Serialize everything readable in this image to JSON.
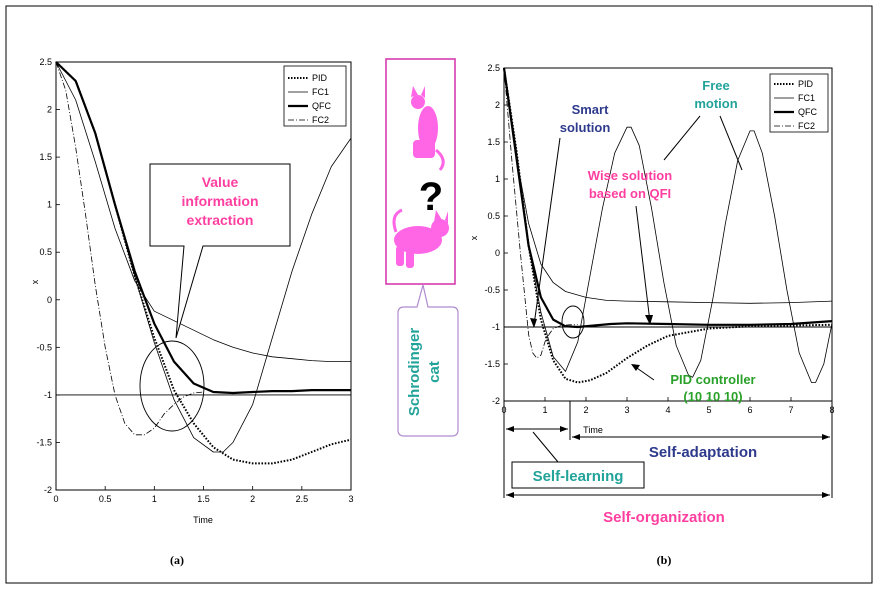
{
  "figure": {
    "caption_a": "(a)",
    "caption_b": "(b)",
    "cat_label_1": "Schrodinger",
    "cat_label_2": "cat",
    "question_mark": "?"
  },
  "colors": {
    "pink": "#ff3fa0",
    "teal": "#22a39a",
    "navy": "#2e3a8c",
    "green": "#2aa12a",
    "cat_fill": "#ff66e6",
    "cat_border": "#d63cae",
    "cat_bubble_border": "#b08ad0"
  },
  "annotations": {
    "a_value": [
      "Value",
      "information",
      "extraction"
    ],
    "b_smart": [
      "Smart",
      "solution"
    ],
    "b_free": [
      "Free",
      "motion"
    ],
    "b_wise": [
      "Wise solution",
      "based on QFI"
    ],
    "b_pid": [
      "PID controller",
      "(10 10 10)"
    ],
    "b_self_adaptation": "Self-adaptation",
    "b_self_learning": "Self-learning",
    "b_self_organization": "Self-organization"
  },
  "chart_data": [
    {
      "type": "line",
      "panel": "a",
      "xlabel": "Time",
      "ylabel": "x",
      "xlim": [
        0,
        3
      ],
      "ylim": [
        -2,
        2.5
      ],
      "xticks": [
        "0",
        "0.5",
        "1",
        "1.5",
        "2",
        "2.5",
        "3"
      ],
      "yticks": [
        "2.5",
        "2",
        "1.5",
        "1",
        "0.5",
        "0",
        "-0.5",
        "-1",
        "-1.5",
        "-2"
      ],
      "reference_line": -1,
      "legend_position": "top-right",
      "series": [
        {
          "name": "PID",
          "style": "dotted",
          "x": [
            0,
            0.2,
            0.4,
            0.6,
            0.8,
            1.0,
            1.2,
            1.4,
            1.6,
            1.8,
            2.0,
            2.2,
            2.4,
            2.6,
            2.8,
            3.0
          ],
          "y": [
            2.5,
            2.3,
            1.75,
            1.0,
            0.25,
            -0.4,
            -0.95,
            -1.3,
            -1.55,
            -1.68,
            -1.72,
            -1.72,
            -1.68,
            -1.6,
            -1.52,
            -1.47
          ]
        },
        {
          "name": "FC1",
          "style": "thin",
          "x": [
            0,
            0.2,
            0.4,
            0.6,
            0.8,
            1.0,
            1.2,
            1.4,
            1.6,
            1.8,
            2.0,
            2.2,
            2.4,
            2.6,
            2.8,
            3.0
          ],
          "y": [
            2.5,
            2.1,
            1.45,
            0.75,
            0.2,
            -0.12,
            -0.22,
            -0.32,
            -0.42,
            -0.5,
            -0.56,
            -0.6,
            -0.62,
            -0.64,
            -0.65,
            -0.65
          ]
        },
        {
          "name": "QFC",
          "style": "thick",
          "x": [
            0,
            0.2,
            0.4,
            0.6,
            0.8,
            1.0,
            1.2,
            1.4,
            1.6,
            1.8,
            2.0,
            2.2,
            2.4,
            2.6,
            2.8,
            3.0
          ],
          "y": [
            2.5,
            2.3,
            1.75,
            1.0,
            0.3,
            -0.25,
            -0.65,
            -0.88,
            -0.97,
            -0.98,
            -0.97,
            -0.96,
            -0.96,
            -0.95,
            -0.95,
            -0.95
          ]
        },
        {
          "name": "FC2",
          "style": "dashdot",
          "x": [
            0,
            0.1,
            0.2,
            0.3,
            0.4,
            0.5,
            0.6,
            0.7,
            0.8,
            0.9,
            1.0,
            1.1,
            1.2,
            1.3,
            1.4,
            1.5
          ],
          "y": [
            2.5,
            2.2,
            1.6,
            0.9,
            0.15,
            -0.5,
            -1.0,
            -1.3,
            -1.42,
            -1.42,
            -1.35,
            -1.2,
            -1.1,
            -1.02,
            -0.98,
            -0.97
          ]
        },
        {
          "name": "",
          "style": "thin",
          "x": [
            0,
            0.2,
            0.4,
            0.6,
            0.8,
            1.0,
            1.2,
            1.4,
            1.6,
            1.7,
            1.8,
            2.0,
            2.2,
            2.4,
            2.6,
            2.8,
            3.0
          ],
          "y": [
            2.5,
            2.3,
            1.75,
            1.0,
            0.25,
            -0.45,
            -1.05,
            -1.45,
            -1.6,
            -1.6,
            -1.5,
            -1.1,
            -0.4,
            0.3,
            0.9,
            1.4,
            1.7
          ]
        }
      ]
    },
    {
      "type": "line",
      "panel": "b",
      "xlabel": "Time",
      "ylabel": "x",
      "xlim": [
        0,
        8
      ],
      "ylim": [
        -2,
        2.5
      ],
      "xticks": [
        "0",
        "1",
        "2",
        "3",
        "4",
        "5",
        "6",
        "7",
        "8"
      ],
      "yticks": [
        "2.5",
        "2",
        "1.5",
        "1",
        "0.5",
        "0",
        "-0.5",
        "-1",
        "-1.5",
        "-2"
      ],
      "reference_line": -1,
      "legend_position": "top-right",
      "series": [
        {
          "name": "PID",
          "style": "dotted",
          "x": [
            0,
            0.3,
            0.6,
            0.9,
            1.2,
            1.5,
            1.8,
            2.1,
            2.5,
            3.0,
            3.5,
            4.0,
            5.0,
            6.0,
            7.0,
            8.0
          ],
          "y": [
            2.5,
            1.4,
            0.1,
            -0.9,
            -1.45,
            -1.7,
            -1.75,
            -1.72,
            -1.62,
            -1.42,
            -1.25,
            -1.12,
            -1.02,
            -0.99,
            -0.98,
            -0.97
          ]
        },
        {
          "name": "FC1",
          "style": "thin",
          "x": [
            0,
            0.3,
            0.6,
            0.9,
            1.2,
            1.5,
            2.0,
            2.5,
            3.0,
            4.0,
            5.0,
            6.0,
            7.0,
            8.0
          ],
          "y": [
            2.5,
            1.3,
            0.4,
            -0.15,
            -0.4,
            -0.52,
            -0.6,
            -0.64,
            -0.65,
            -0.66,
            -0.67,
            -0.68,
            -0.67,
            -0.65
          ]
        },
        {
          "name": "QFC",
          "style": "thick",
          "x": [
            0,
            0.3,
            0.6,
            0.9,
            1.2,
            1.5,
            1.8,
            2.2,
            2.6,
            3.0,
            4.0,
            5.0,
            6.0,
            7.0,
            8.0
          ],
          "y": [
            2.5,
            1.3,
            0.1,
            -0.6,
            -0.9,
            -0.99,
            -1.0,
            -0.98,
            -0.96,
            -0.95,
            -0.96,
            -0.97,
            -0.97,
            -0.96,
            -0.92
          ]
        },
        {
          "name": "FC2",
          "style": "dashdot",
          "x": [
            0,
            0.2,
            0.4,
            0.6,
            0.7,
            0.8,
            0.9,
            1.0,
            1.1,
            1.2,
            1.4,
            1.6,
            1.8
          ],
          "y": [
            2.5,
            1.2,
            0.0,
            -1.1,
            -1.35,
            -1.42,
            -1.38,
            -1.2,
            -1.1,
            -1.02,
            -0.98,
            -0.97,
            -0.97
          ]
        },
        {
          "name": "",
          "style": "thin",
          "x": [
            0,
            0.3,
            0.6,
            0.9,
            1.2,
            1.5,
            1.8,
            2.1,
            2.4,
            2.7,
            3.0,
            3.1,
            3.3,
            3.6,
            3.9,
            4.2,
            4.5,
            4.6,
            4.8,
            5.1,
            5.4,
            5.7,
            6.0,
            6.1,
            6.3,
            6.6,
            6.9,
            7.2,
            7.5,
            7.6,
            7.8,
            8.0
          ],
          "y": [
            2.5,
            1.4,
            0.1,
            -0.8,
            -1.4,
            -1.6,
            -1.2,
            -0.3,
            0.6,
            1.35,
            1.7,
            1.7,
            1.45,
            0.6,
            -0.4,
            -1.25,
            -1.65,
            -1.68,
            -1.45,
            -0.6,
            0.4,
            1.25,
            1.65,
            1.65,
            1.35,
            0.5,
            -0.5,
            -1.35,
            -1.75,
            -1.75,
            -1.5,
            -0.95
          ]
        }
      ]
    }
  ]
}
